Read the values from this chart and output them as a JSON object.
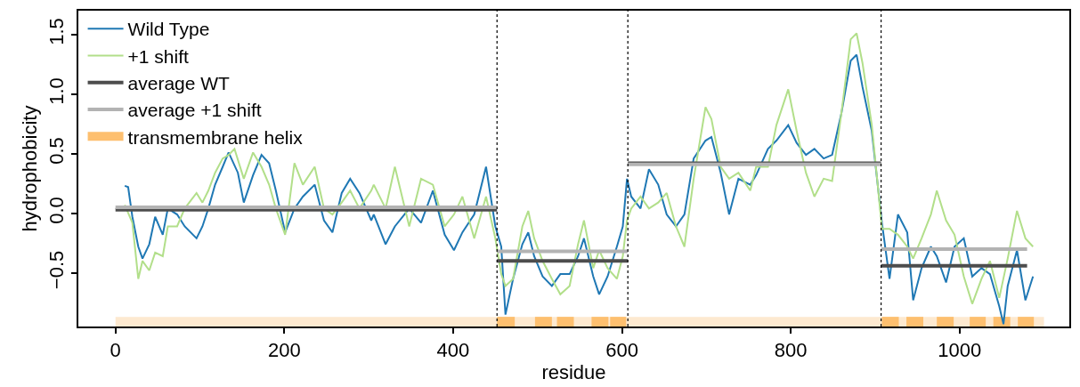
{
  "chart_data": {
    "type": "line",
    "xlabel": "residue",
    "ylabel": "hydrophobicity",
    "xlim": [
      -44,
      1130
    ],
    "xticks": [
      0,
      200,
      400,
      600,
      800,
      1000
    ],
    "ylim": [
      -0.95,
      1.7
    ],
    "yticks": [
      {
        "value": -0.5,
        "label": "−0.5"
      },
      {
        "value": 0,
        "label": "0.0"
      },
      {
        "value": 0.5,
        "label": "0.5"
      },
      {
        "value": 1,
        "label": "1.0"
      },
      {
        "value": 1.5,
        "label": "1.5"
      }
    ],
    "legend": "top left",
    "marker": "none",
    "line_style": "solid",
    "series": [
      {
        "name": "Wild Type",
        "color": "#1f78b4",
        "x": [
          11,
          15,
          20,
          27,
          32,
          40,
          47,
          56,
          62,
          73,
          82,
          96,
          103,
          110,
          118,
          127,
          134,
          145,
          152,
          163,
          173,
          182,
          190,
          201,
          212,
          222,
          236,
          247,
          257,
          268,
          278,
          289,
          303,
          306,
          320,
          331,
          348,
          362,
          376,
          390,
          401,
          411,
          425,
          439,
          450,
          457,
          462,
          471,
          482,
          489,
          496,
          506,
          517,
          527,
          538,
          548,
          555,
          566,
          573,
          583,
          594,
          601,
          606,
          611,
          622,
          632,
          643,
          653,
          664,
          674,
          685,
          699,
          706,
          717,
          727,
          738,
          752,
          759,
          773,
          783,
          797,
          807,
          818,
          828,
          839,
          849,
          860,
          871,
          878,
          885,
          896,
          903,
          908,
          917,
          927,
          938,
          945,
          955,
          966,
          973,
          984,
          994,
          1005,
          1015,
          1026,
          1036,
          1047,
          1052,
          1057,
          1068,
          1078,
          1087
        ],
        "values": [
          0.23,
          0.22,
          -0.03,
          -0.28,
          -0.38,
          -0.26,
          -0.03,
          -0.18,
          0.04,
          -0.01,
          -0.11,
          -0.21,
          -0.11,
          0.04,
          0.24,
          0.39,
          0.51,
          0.34,
          0.09,
          0.32,
          0.49,
          0.42,
          0.19,
          -0.16,
          0.04,
          0.14,
          0.24,
          -0.06,
          -0.16,
          0.17,
          0.29,
          0.17,
          -0.06,
          -0.01,
          -0.26,
          -0.11,
          0.04,
          -0.08,
          0.19,
          -0.18,
          -0.31,
          -0.16,
          -0.01,
          0.39,
          -0.11,
          -0.28,
          -0.85,
          -0.55,
          -0.26,
          -0.16,
          -0.36,
          -0.53,
          -0.61,
          -0.51,
          -0.51,
          -0.36,
          -0.21,
          -0.53,
          -0.68,
          -0.53,
          -0.28,
          -0.11,
          0.29,
          0.14,
          0.04,
          0.37,
          0.24,
          -0.01,
          -0.11,
          -0.01,
          0.46,
          0.61,
          0.64,
          0.34,
          -0.01,
          0.29,
          0.24,
          0.32,
          0.54,
          0.61,
          0.74,
          0.59,
          0.49,
          0.54,
          0.46,
          0.49,
          0.84,
          1.28,
          1.33,
          1.06,
          0.69,
          0.24,
          -0.08,
          -0.55,
          -0.01,
          -0.16,
          -0.73,
          -0.46,
          -0.28,
          -0.36,
          -0.58,
          -0.28,
          -0.21,
          -0.53,
          -0.46,
          -0.51,
          -0.78,
          -0.93,
          -0.61,
          -0.31,
          -0.73,
          -0.53
        ]
      },
      {
        "name": "+1 shift",
        "color": "#b2df8a",
        "x": [
          11,
          20,
          27,
          32,
          40,
          47,
          56,
          62,
          73,
          82,
          96,
          103,
          110,
          118,
          127,
          134,
          141,
          152,
          163,
          173,
          182,
          190,
          201,
          212,
          222,
          236,
          247,
          257,
          268,
          278,
          289,
          303,
          306,
          320,
          331,
          348,
          362,
          376,
          390,
          401,
          411,
          425,
          439,
          450,
          457,
          462,
          471,
          482,
          489,
          496,
          506,
          517,
          527,
          538,
          548,
          555,
          566,
          573,
          583,
          594,
          601,
          606,
          611,
          622,
          632,
          643,
          653,
          664,
          674,
          685,
          699,
          706,
          717,
          727,
          738,
          752,
          759,
          773,
          783,
          797,
          807,
          818,
          828,
          839,
          849,
          860,
          871,
          878,
          885,
          896,
          903,
          908,
          917,
          927,
          938,
          945,
          955,
          966,
          973,
          984,
          994,
          1005,
          1015,
          1026,
          1036,
          1047,
          1057,
          1068,
          1078,
          1087
        ],
        "values": [
          0.07,
          -0.08,
          -0.55,
          -0.4,
          -0.48,
          -0.33,
          -0.36,
          -0.11,
          -0.11,
          0.04,
          0.17,
          0.09,
          0.19,
          0.34,
          0.46,
          0.49,
          0.54,
          0.29,
          0.51,
          0.39,
          0.24,
          0.04,
          -0.18,
          0.42,
          0.24,
          0.39,
          0.04,
          -0.01,
          0.09,
          0.19,
          0.04,
          0.19,
          0.24,
          0.04,
          0.39,
          -0.11,
          0.29,
          0.24,
          -0.11,
          -0.01,
          0.14,
          -0.21,
          0.14,
          -0.21,
          -0.51,
          -0.61,
          -0.55,
          -0.11,
          0.02,
          -0.21,
          -0.4,
          -0.55,
          -0.68,
          -0.61,
          -0.26,
          -0.06,
          -0.46,
          -0.31,
          -0.46,
          -0.55,
          -0.36,
          -0.06,
          0.04,
          0.14,
          0.04,
          0.09,
          0.17,
          -0.11,
          -0.28,
          0.29,
          0.89,
          0.79,
          0.39,
          0.29,
          0.34,
          0.19,
          0.39,
          0.39,
          0.74,
          1.04,
          0.69,
          0.34,
          0.14,
          0.29,
          0.27,
          0.84,
          1.46,
          1.51,
          1.26,
          0.74,
          0.24,
          -0.13,
          -0.13,
          -0.18,
          -0.28,
          -0.38,
          -0.21,
          -0.01,
          0.19,
          -0.06,
          -0.18,
          -0.53,
          -0.76,
          -0.55,
          -0.4,
          -0.71,
          -0.38,
          0.02,
          -0.21,
          -0.28
        ]
      },
      {
        "name": "average WT",
        "color": "#4d4d4d",
        "x": [
          0,
          452,
          null,
          452,
          607,
          null,
          607,
          907,
          null,
          907,
          1080
        ],
        "values": [
          0.03,
          0.03,
          null,
          -0.4,
          -0.4,
          null,
          0.42,
          0.42,
          null,
          -0.44,
          -0.44
        ]
      },
      {
        "name": "average +1 shift",
        "color": "#b3b3b3",
        "x": [
          0,
          452,
          null,
          452,
          607,
          null,
          607,
          907,
          null,
          907,
          1080
        ],
        "values": [
          0.05,
          0.05,
          null,
          -0.32,
          -0.32,
          null,
          0.41,
          0.41,
          null,
          -0.3,
          -0.3
        ]
      },
      {
        "color": "#fde9d0",
        "x": [
          0,
          1100
        ],
        "values": [
          -0.91,
          -0.91
        ]
      },
      {
        "name": "transmembrane helix",
        "color": "#fdbf6f",
        "x": [
          452,
          473,
          null,
          497,
          517,
          null,
          523,
          543,
          null,
          564,
          584,
          null,
          586,
          605,
          null,
          908,
          928,
          null,
          937,
          957,
          null,
          973,
          993,
          null,
          1012,
          1031,
          null,
          1040,
          1060,
          null,
          1069,
          1088
        ],
        "values": [
          -0.91,
          -0.91,
          null,
          -0.91,
          -0.91,
          null,
          -0.91,
          -0.91,
          null,
          -0.91,
          -0.91,
          null,
          -0.91,
          -0.91,
          null,
          -0.91,
          -0.91,
          null,
          -0.91,
          -0.91,
          null,
          -0.91,
          -0.91,
          null,
          -0.91,
          -0.91,
          null,
          -0.91,
          -0.91,
          null,
          -0.91,
          -0.91
        ]
      }
    ],
    "ref_lines": [
      {
        "axis": "x",
        "value": 452,
        "color": "#000000",
        "line_style": "dotted"
      },
      {
        "axis": "x",
        "value": 607,
        "color": "#000000",
        "line_style": "dotted"
      },
      {
        "axis": "x",
        "value": 907,
        "color": "#000000",
        "line_style": "dotted"
      }
    ]
  }
}
